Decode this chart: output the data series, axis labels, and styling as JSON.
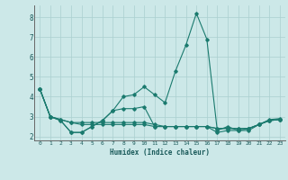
{
  "xlabel": "Humidex (Indice chaleur)",
  "bg_color": "#cce8e8",
  "line_color": "#1a7a6e",
  "grid_color": "#aacfcf",
  "xlim": [
    -0.5,
    23.5
  ],
  "ylim": [
    1.8,
    8.6
  ],
  "xticks": [
    0,
    1,
    2,
    3,
    4,
    5,
    6,
    7,
    8,
    9,
    10,
    11,
    12,
    13,
    14,
    15,
    16,
    17,
    18,
    19,
    20,
    21,
    22,
    23
  ],
  "yticks": [
    2,
    3,
    4,
    5,
    6,
    7,
    8
  ],
  "series": [
    [
      4.4,
      3.0,
      2.8,
      2.2,
      2.2,
      2.5,
      2.8,
      3.3,
      4.0,
      4.1,
      4.5,
      4.1,
      3.7,
      5.3,
      6.6,
      8.2,
      6.9,
      2.3,
      2.5,
      2.3,
      2.4,
      2.6,
      2.8,
      2.85
    ],
    [
      4.4,
      3.0,
      2.8,
      2.2,
      2.2,
      2.5,
      2.8,
      3.3,
      3.4,
      3.4,
      3.5,
      2.5,
      2.5,
      2.5,
      2.5,
      2.5,
      2.5,
      2.2,
      2.3,
      2.3,
      2.3,
      2.6,
      2.8,
      2.85
    ],
    [
      4.4,
      3.0,
      2.85,
      2.7,
      2.7,
      2.7,
      2.7,
      2.7,
      2.7,
      2.7,
      2.7,
      2.6,
      2.5,
      2.5,
      2.5,
      2.5,
      2.5,
      2.4,
      2.4,
      2.4,
      2.4,
      2.6,
      2.8,
      2.85
    ],
    [
      4.4,
      3.0,
      2.85,
      2.7,
      2.6,
      2.6,
      2.6,
      2.6,
      2.6,
      2.6,
      2.6,
      2.5,
      2.5,
      2.5,
      2.5,
      2.5,
      2.5,
      2.4,
      2.4,
      2.4,
      2.4,
      2.6,
      2.85,
      2.9
    ]
  ]
}
